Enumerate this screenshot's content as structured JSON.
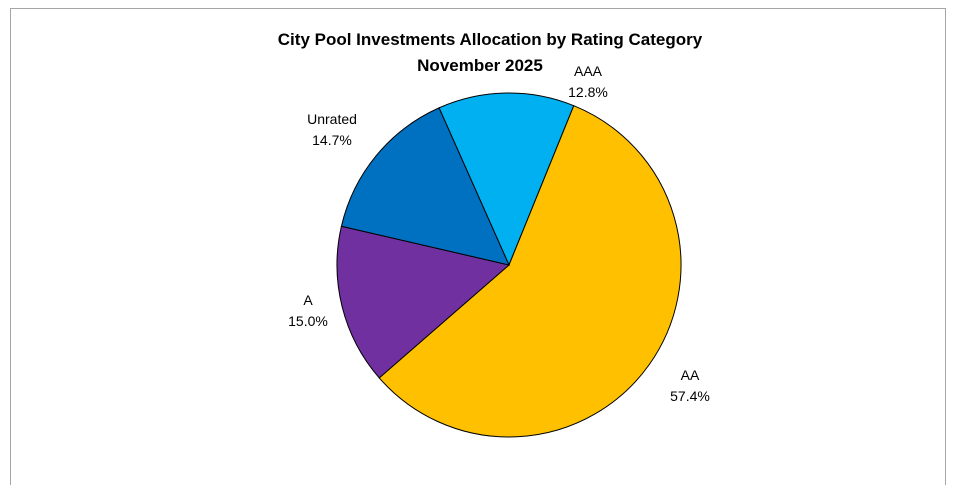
{
  "chart_data": {
    "type": "pie",
    "title": "City Pool Investments Allocation by Rating Category",
    "subtitle": "November 2025",
    "categories": [
      "AAA",
      "AA",
      "A",
      "Unrated"
    ],
    "values": [
      12.8,
      57.4,
      15.0,
      14.7
    ],
    "value_labels": [
      "12.8%",
      "57.4%",
      "15.0%",
      "14.7%"
    ],
    "colors": [
      "#00b0f0",
      "#ffc000",
      "#7030a0",
      "#0070c0"
    ]
  }
}
